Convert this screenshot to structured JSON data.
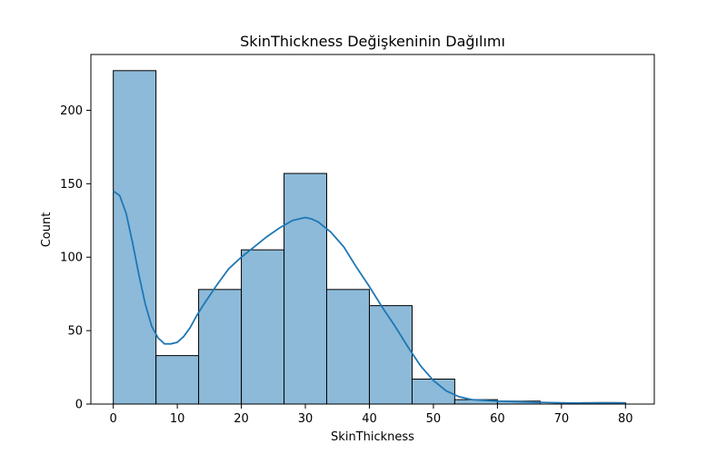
{
  "chart_data": {
    "type": "bar",
    "title": "SkinThickness Değişkeninin Dağılımı",
    "xlabel": "SkinThickness",
    "ylabel": "Count",
    "xlim": [
      -3.5,
      84.5
    ],
    "ylim": [
      0,
      238
    ],
    "x_ticks": [
      0,
      10,
      20,
      30,
      40,
      50,
      60,
      70,
      80
    ],
    "y_ticks": [
      0,
      50,
      100,
      150,
      200
    ],
    "grid": false,
    "bin_edges": [
      0,
      6.67,
      13.33,
      20,
      26.67,
      33.33,
      40,
      46.67,
      53.33,
      60,
      66.67,
      73.33,
      80
    ],
    "counts": [
      227,
      33,
      78,
      105,
      157,
      78,
      67,
      17,
      3,
      2,
      0,
      1
    ],
    "kde": {
      "x": [
        0,
        1,
        2,
        3,
        4,
        5,
        6,
        7,
        8,
        9,
        10,
        11,
        12,
        13,
        14,
        16,
        18,
        20,
        22,
        24,
        26,
        28,
        29,
        30,
        31,
        32,
        34,
        36,
        38,
        40,
        42,
        44,
        46,
        48,
        50,
        52,
        54,
        56,
        58,
        60,
        62,
        64,
        66,
        68,
        70,
        72,
        74,
        76,
        78,
        80
      ],
      "y": [
        145,
        142,
        130,
        110,
        88,
        68,
        53,
        45,
        41,
        41,
        42,
        46,
        52,
        60,
        67,
        80,
        92,
        100,
        107,
        114,
        120,
        125,
        126,
        127,
        126,
        124,
        117,
        107,
        93,
        80,
        66,
        53,
        39,
        26,
        16,
        9,
        5,
        3,
        2.5,
        2,
        1.8,
        1.5,
        1.2,
        1,
        0.8,
        0.7,
        0.7,
        0.8,
        0.8,
        0.7
      ]
    },
    "bar_fill": "#8dbad9",
    "bar_edge": "#000000",
    "kde_color": "#1f77b4"
  }
}
